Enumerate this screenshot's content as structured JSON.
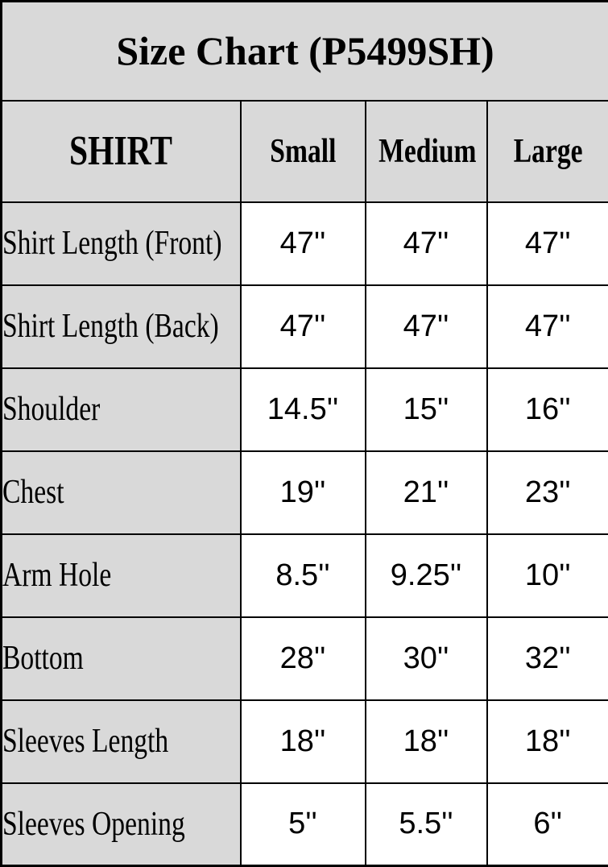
{
  "chart_data": {
    "type": "table",
    "title": "Size Chart (P5499SH)",
    "corner_header": "SHIRT",
    "columns": [
      "Small",
      "Medium",
      "Large"
    ],
    "rows": [
      {
        "label": "Shirt Length (Front)",
        "values": [
          "47''",
          "47''",
          "47''"
        ]
      },
      {
        "label": "Shirt Length (Back)",
        "values": [
          "47''",
          "47''",
          "47''"
        ]
      },
      {
        "label": "Shoulder",
        "values": [
          "14.5''",
          "15''",
          "16''"
        ]
      },
      {
        "label": "Chest",
        "values": [
          "19''",
          "21''",
          "23''"
        ]
      },
      {
        "label": "Arm Hole",
        "values": [
          "8.5''",
          "9.25''",
          "10''"
        ]
      },
      {
        "label": "Bottom",
        "values": [
          "28''",
          "30''",
          "32''"
        ]
      },
      {
        "label": "Sleeves Length",
        "values": [
          "18''",
          "18''",
          "18''"
        ]
      },
      {
        "label": "Sleeves Opening",
        "values": [
          "5''",
          "5.5''",
          "6''"
        ]
      }
    ],
    "layout": {
      "header_fill": "#d9d9d9",
      "label_column_fill": "#d9d9d9",
      "value_cell_fill": "#ffffff",
      "border_color": "#000000",
      "text_color": "#000000",
      "grid": "on",
      "unit": "inches"
    }
  }
}
